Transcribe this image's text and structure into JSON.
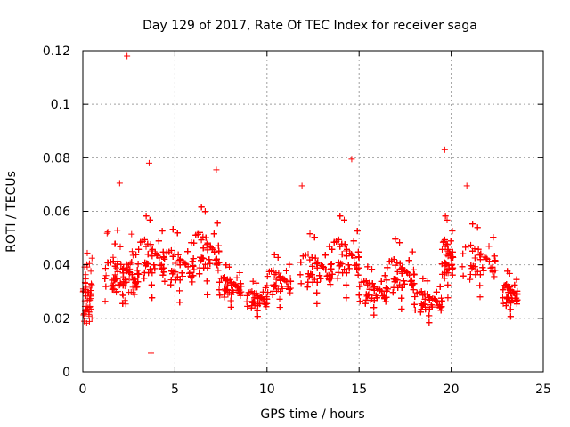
{
  "chart_data": {
    "type": "scatter",
    "title": "Day 129 of 2017, Rate Of TEC Index for receiver saga",
    "xlabel": "GPS time / hours",
    "ylabel": "ROTI / TECUs",
    "xlim": [
      0,
      25
    ],
    "ylim": [
      0,
      0.12
    ],
    "xticks": [
      0,
      5,
      10,
      15,
      20,
      25
    ],
    "xtick_labels": [
      "0",
      "5",
      "10",
      "15",
      "20",
      "25"
    ],
    "yticks": [
      0,
      0.02,
      0.04,
      0.06,
      0.08,
      0.1,
      0.12
    ],
    "ytick_labels": [
      "0",
      "0.02",
      "0.04",
      "0.06",
      "0.08",
      "0.1",
      "0.12"
    ],
    "grid": true,
    "marker": "+",
    "color": "#ff0000",
    "notable_points": [
      {
        "x": 2.4,
        "y": 0.118
      },
      {
        "x": 19.65,
        "y": 0.083
      },
      {
        "x": 14.6,
        "y": 0.0795
      },
      {
        "x": 3.6,
        "y": 0.078
      },
      {
        "x": 7.25,
        "y": 0.0755
      },
      {
        "x": 2.0,
        "y": 0.0705
      },
      {
        "x": 11.9,
        "y": 0.0695
      },
      {
        "x": 20.85,
        "y": 0.0695
      },
      {
        "x": 3.7,
        "y": 0.007
      }
    ],
    "data_gaps_hours": [
      [
        0.5,
        1.2
      ],
      [
        8.6,
        8.9
      ],
      [
        11.3,
        11.8
      ],
      [
        20.1,
        20.6
      ],
      [
        22.4,
        22.8
      ]
    ],
    "clusters": [
      {
        "x_range": [
          0.0,
          0.5
        ],
        "y_range": [
          0.008,
          0.046
        ],
        "density": 60
      },
      {
        "x_range": [
          1.2,
          3.0
        ],
        "y_range": [
          0.014,
          0.055
        ],
        "density": 360
      },
      {
        "x_range": [
          3.0,
          4.4
        ],
        "y_range": [
          0.012,
          0.068
        ],
        "density": 260
      },
      {
        "x_range": [
          4.4,
          6.0
        ],
        "y_range": [
          0.012,
          0.062
        ],
        "density": 300
      },
      {
        "x_range": [
          6.0,
          7.4
        ],
        "y_range": [
          0.012,
          0.072
        ],
        "density": 300
      },
      {
        "x_range": [
          7.4,
          8.6
        ],
        "y_range": [
          0.016,
          0.045
        ],
        "density": 200
      },
      {
        "x_range": [
          8.9,
          10.0
        ],
        "y_range": [
          0.014,
          0.038
        ],
        "density": 120
      },
      {
        "x_range": [
          10.0,
          11.3
        ],
        "y_range": [
          0.014,
          0.05
        ],
        "density": 120
      },
      {
        "x_range": [
          11.8,
          13.5
        ],
        "y_range": [
          0.012,
          0.06
        ],
        "density": 300
      },
      {
        "x_range": [
          13.5,
          15.0
        ],
        "y_range": [
          0.012,
          0.068
        ],
        "density": 300
      },
      {
        "x_range": [
          15.0,
          16.5
        ],
        "y_range": [
          0.012,
          0.045
        ],
        "density": 280
      },
      {
        "x_range": [
          16.5,
          18.0
        ],
        "y_range": [
          0.01,
          0.058
        ],
        "density": 300
      },
      {
        "x_range": [
          18.0,
          19.5
        ],
        "y_range": [
          0.01,
          0.04
        ],
        "density": 260
      },
      {
        "x_range": [
          19.5,
          20.1
        ],
        "y_range": [
          0.012,
          0.068
        ],
        "density": 140
      },
      {
        "x_range": [
          20.6,
          22.4
        ],
        "y_range": [
          0.014,
          0.064
        ],
        "density": 160
      },
      {
        "x_range": [
          22.8,
          23.6
        ],
        "y_range": [
          0.012,
          0.043
        ],
        "density": 180
      }
    ]
  }
}
